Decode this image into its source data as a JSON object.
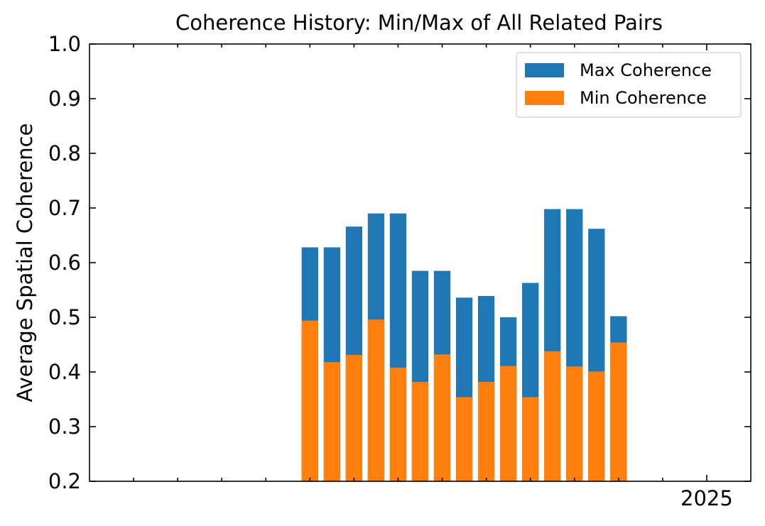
{
  "chart_data": {
    "type": "bar",
    "title": "Coherence History: Min/Max of All Related Pairs",
    "xlabel": "",
    "ylabel": "Average Spatial Coherence",
    "ylim": [
      0.2,
      1.0
    ],
    "yticks": [
      "0.2",
      "0.3",
      "0.4",
      "0.5",
      "0.6",
      "0.7",
      "0.8",
      "0.9",
      "1.0"
    ],
    "xticks": [
      {
        "position": 26,
        "label": "2025"
      }
    ],
    "xlim": [
      -2,
      28
    ],
    "x": [
      8,
      9,
      10,
      11,
      12,
      13,
      14,
      15,
      16,
      17,
      18,
      19,
      20,
      21,
      22
    ],
    "bar_width": 0.75,
    "grid": false,
    "legend_position": "top-right",
    "series": [
      {
        "name": "Max Coherence",
        "color": "#1f77b4",
        "values": [
          0.628,
          0.628,
          0.666,
          0.69,
          0.69,
          0.585,
          0.585,
          0.536,
          0.539,
          0.5,
          0.563,
          0.698,
          0.698,
          0.662,
          0.502
        ]
      },
      {
        "name": "Min Coherence",
        "color": "#ff7f0e",
        "values": [
          0.494,
          0.418,
          0.431,
          0.496,
          0.408,
          0.382,
          0.432,
          0.354,
          0.382,
          0.411,
          0.354,
          0.438,
          0.41,
          0.401,
          0.454
        ]
      }
    ]
  }
}
